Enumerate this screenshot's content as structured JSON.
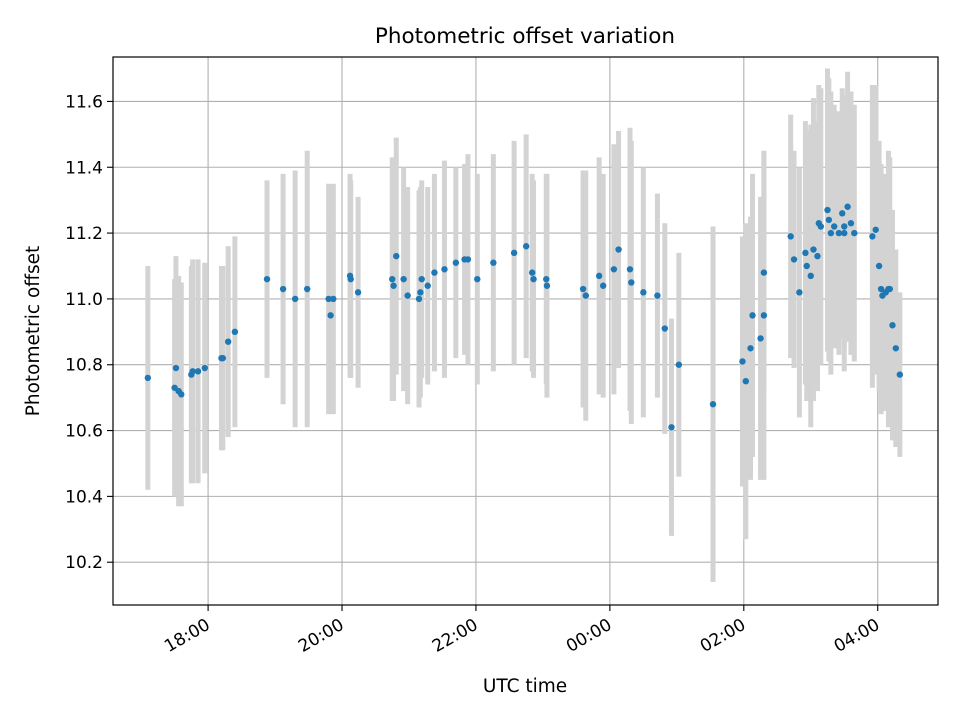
{
  "chart_data": {
    "type": "scatter",
    "title": "Photometric offset variation",
    "xlabel": "UTC time",
    "ylabel": "Photometric offset",
    "x_unit": "UTC hours (continuing past midnight)",
    "xlim": [
      16.58,
      28.9
    ],
    "ylim": [
      10.07,
      11.735
    ],
    "x_ticks": [
      {
        "value": 18,
        "label": "18:00"
      },
      {
        "value": 20,
        "label": "20:00"
      },
      {
        "value": 22,
        "label": "22:00"
      },
      {
        "value": 24,
        "label": "00:00"
      },
      {
        "value": 26,
        "label": "02:00"
      },
      {
        "value": 28,
        "label": "04:00"
      }
    ],
    "y_ticks": [
      10.2,
      10.4,
      10.6,
      10.8,
      11.0,
      11.2,
      11.4,
      11.6
    ],
    "y_tick_labels": [
      "10.2",
      "10.4",
      "10.6",
      "10.8",
      "11.0",
      "11.2",
      "11.4",
      "11.6"
    ],
    "grid": true,
    "legend": "none",
    "marker_color": "#1f77b4",
    "errorbar_color": "#d3d3d3",
    "points": [
      [
        17.1,
        10.76,
        0.34
      ],
      [
        17.5,
        10.73,
        0.33
      ],
      [
        17.52,
        10.79,
        0.34
      ],
      [
        17.56,
        10.72,
        0.35
      ],
      [
        17.6,
        10.71,
        0.34
      ],
      [
        17.75,
        10.77,
        0.33
      ],
      [
        17.77,
        10.78,
        0.34
      ],
      [
        17.85,
        10.78,
        0.34
      ],
      [
        17.95,
        10.79,
        0.32
      ],
      [
        18.2,
        10.82,
        0.28
      ],
      [
        18.22,
        10.82,
        0.28
      ],
      [
        18.3,
        10.87,
        0.29
      ],
      [
        18.4,
        10.9,
        0.29
      ],
      [
        18.88,
        11.06,
        0.3
      ],
      [
        19.12,
        11.03,
        0.35
      ],
      [
        19.3,
        11.0,
        0.39
      ],
      [
        19.48,
        11.03,
        0.42
      ],
      [
        19.8,
        11.0,
        0.35
      ],
      [
        19.83,
        10.95,
        0.3
      ],
      [
        19.87,
        11.0,
        0.35
      ],
      [
        20.12,
        11.07,
        0.31
      ],
      [
        20.13,
        11.06,
        0.3
      ],
      [
        20.24,
        11.02,
        0.29
      ],
      [
        20.75,
        11.06,
        0.37
      ],
      [
        20.77,
        11.04,
        0.35
      ],
      [
        20.81,
        11.13,
        0.36
      ],
      [
        20.92,
        11.06,
        0.34
      ],
      [
        20.98,
        11.01,
        0.33
      ],
      [
        21.15,
        11.0,
        0.33
      ],
      [
        21.17,
        11.02,
        0.32
      ],
      [
        21.19,
        11.06,
        0.3
      ],
      [
        21.28,
        11.04,
        0.3
      ],
      [
        21.38,
        11.08,
        0.3
      ],
      [
        21.53,
        11.09,
        0.33
      ],
      [
        21.7,
        11.11,
        0.29
      ],
      [
        21.83,
        11.12,
        0.29
      ],
      [
        21.88,
        11.12,
        0.32
      ],
      [
        22.02,
        11.06,
        0.32
      ],
      [
        22.26,
        11.11,
        0.33
      ],
      [
        22.57,
        11.14,
        0.34
      ],
      [
        22.75,
        11.16,
        0.34
      ],
      [
        22.84,
        11.08,
        0.3
      ],
      [
        22.86,
        11.06,
        0.3
      ],
      [
        23.05,
        11.06,
        0.32
      ],
      [
        23.06,
        11.04,
        0.34
      ],
      [
        23.6,
        11.03,
        0.36
      ],
      [
        23.64,
        11.01,
        0.38
      ],
      [
        23.84,
        11.07,
        0.36
      ],
      [
        23.9,
        11.04,
        0.34
      ],
      [
        24.06,
        11.09,
        0.38
      ],
      [
        24.13,
        11.15,
        0.36
      ],
      [
        24.3,
        11.09,
        0.43
      ],
      [
        24.32,
        11.05,
        0.43
      ],
      [
        24.5,
        11.02,
        0.38
      ],
      [
        24.71,
        11.01,
        0.31
      ],
      [
        24.82,
        10.91,
        0.32
      ],
      [
        24.92,
        10.61,
        0.33
      ],
      [
        25.03,
        10.8,
        0.34
      ],
      [
        25.54,
        10.68,
        0.54
      ],
      [
        25.98,
        10.81,
        0.38
      ],
      [
        26.03,
        10.75,
        0.48
      ],
      [
        26.1,
        10.85,
        0.4
      ],
      [
        26.13,
        10.95,
        0.43
      ],
      [
        26.25,
        10.88,
        0.43
      ],
      [
        26.3,
        10.95,
        0.5
      ],
      [
        26.3,
        11.08,
        0.36
      ],
      [
        26.7,
        11.19,
        0.37
      ],
      [
        26.75,
        11.12,
        0.33
      ],
      [
        26.83,
        11.02,
        0.38
      ],
      [
        26.92,
        11.14,
        0.4
      ],
      [
        26.94,
        11.1,
        0.41
      ],
      [
        27.0,
        11.07,
        0.46
      ],
      [
        27.04,
        11.15,
        0.46
      ],
      [
        27.1,
        11.13,
        0.41
      ],
      [
        27.12,
        11.23,
        0.42
      ],
      [
        27.15,
        11.22,
        0.42
      ],
      [
        27.25,
        11.27,
        0.43
      ],
      [
        27.27,
        11.24,
        0.43
      ],
      [
        27.3,
        11.2,
        0.43
      ],
      [
        27.35,
        11.22,
        0.37
      ],
      [
        27.42,
        11.2,
        0.37
      ],
      [
        27.47,
        11.26,
        0.38
      ],
      [
        27.5,
        11.22,
        0.37
      ],
      [
        27.5,
        11.2,
        0.42
      ],
      [
        27.55,
        11.28,
        0.41
      ],
      [
        27.6,
        11.23,
        0.4
      ],
      [
        27.65,
        11.2,
        0.39
      ],
      [
        27.92,
        11.19,
        0.46
      ],
      [
        27.97,
        11.21,
        0.44
      ],
      [
        28.02,
        11.1,
        0.38
      ],
      [
        28.05,
        11.03,
        0.38
      ],
      [
        28.07,
        11.01,
        0.35
      ],
      [
        28.12,
        11.02,
        0.36
      ],
      [
        28.16,
        11.03,
        0.42
      ],
      [
        28.18,
        11.03,
        0.4
      ],
      [
        28.22,
        10.92,
        0.35
      ],
      [
        28.27,
        10.85,
        0.3
      ],
      [
        28.33,
        10.77,
        0.25
      ]
    ]
  }
}
